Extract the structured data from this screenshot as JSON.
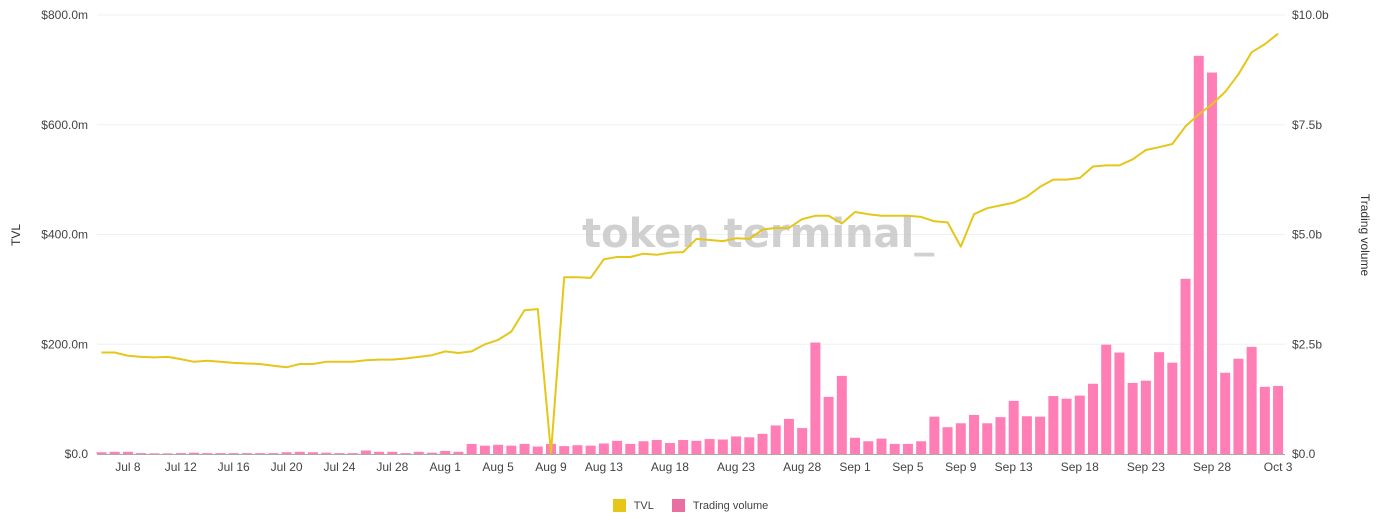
{
  "chart_data": {
    "type": "bar+line",
    "watermark": "token terminal_",
    "x": [
      "Jul 6",
      "Jul 7",
      "Jul 8",
      "Jul 9",
      "Jul 10",
      "Jul 11",
      "Jul 12",
      "Jul 13",
      "Jul 14",
      "Jul 15",
      "Jul 16",
      "Jul 17",
      "Jul 18",
      "Jul 19",
      "Jul 20",
      "Jul 21",
      "Jul 22",
      "Jul 23",
      "Jul 24",
      "Jul 25",
      "Jul 26",
      "Jul 27",
      "Jul 28",
      "Jul 29",
      "Jul 30",
      "Jul 31",
      "Aug 1",
      "Aug 2",
      "Aug 3",
      "Aug 4",
      "Aug 5",
      "Aug 6",
      "Aug 7",
      "Aug 8",
      "Aug 9",
      "Aug 10",
      "Aug 11",
      "Aug 12",
      "Aug 13",
      "Aug 14",
      "Aug 15",
      "Aug 16",
      "Aug 17",
      "Aug 18",
      "Aug 19",
      "Aug 20",
      "Aug 21",
      "Aug 22",
      "Aug 23",
      "Aug 24",
      "Aug 25",
      "Aug 26",
      "Aug 27",
      "Aug 28",
      "Aug 29",
      "Aug 30",
      "Aug 31",
      "Sep 1",
      "Sep 2",
      "Sep 3",
      "Sep 4",
      "Sep 5",
      "Sep 6",
      "Sep 7",
      "Sep 8",
      "Sep 9",
      "Sep 10",
      "Sep 11",
      "Sep 12",
      "Sep 13",
      "Sep 14",
      "Sep 15",
      "Sep 16",
      "Sep 17",
      "Sep 18",
      "Sep 19",
      "Sep 20",
      "Sep 21",
      "Sep 22",
      "Sep 23",
      "Sep 24",
      "Sep 25",
      "Sep 26",
      "Sep 27",
      "Sep 28",
      "Sep 29",
      "Sep 30",
      "Oct 1",
      "Oct 2",
      "Oct 3"
    ],
    "x_ticks": [
      "Jul 8",
      "Jul 12",
      "Jul 16",
      "Jul 20",
      "Jul 24",
      "Jul 28",
      "Aug 1",
      "Aug 5",
      "Aug 9",
      "Aug 13",
      "Aug 18",
      "Aug 23",
      "Aug 28",
      "Sep 1",
      "Sep 5",
      "Sep 9",
      "Sep 13",
      "Sep 18",
      "Sep 23",
      "Sep 28",
      "Oct 3"
    ],
    "left_axis": {
      "label": "TVL",
      "unit": "$m",
      "range": [
        0,
        800
      ],
      "ticks": [
        0,
        200,
        400,
        600,
        800
      ],
      "tick_labels": [
        "$0.0",
        "$200.0m",
        "$400.0m",
        "$600.0m",
        "$800.0m"
      ]
    },
    "right_axis": {
      "label": "Trading volume",
      "unit": "$b",
      "range": [
        0,
        10
      ],
      "ticks": [
        0,
        2.5,
        5,
        7.5,
        10
      ],
      "tick_labels": [
        "$0.0",
        "$2.5b",
        "$5.0b",
        "$7.5b",
        "$10.0b"
      ]
    },
    "grid": true,
    "legend_position": "bottom-center",
    "series": [
      {
        "name": "TVL",
        "type": "line",
        "axis": "left",
        "color": "#e5c619",
        "legend_color": "#e5c619",
        "values": [
          185,
          185,
          179,
          177,
          176,
          177,
          173,
          168,
          170,
          168,
          166,
          165,
          164,
          161,
          158,
          164,
          164,
          168,
          168,
          168,
          171,
          172,
          172,
          174,
          177,
          180,
          187,
          184,
          187,
          200,
          208,
          223,
          262,
          264,
          2,
          322,
          322,
          321,
          355,
          359,
          359,
          365,
          363,
          367,
          368,
          392,
          390,
          388,
          393,
          392,
          409,
          412,
          412,
          428,
          434,
          434,
          420,
          441,
          437,
          434,
          434,
          434,
          432,
          424,
          422,
          378,
          437,
          448,
          453,
          458,
          469,
          487,
          500,
          500,
          503,
          524,
          526,
          526,
          537,
          554,
          559,
          565,
          597,
          619,
          637,
          660,
          692,
          732,
          747,
          766
        ]
      },
      {
        "name": "Trading volume",
        "type": "bar",
        "axis": "right",
        "color": "#ff7eb6",
        "legend_color": "#e86fa0",
        "values": [
          0.04,
          0.05,
          0.05,
          0.02,
          0.015,
          0.015,
          0.02,
          0.03,
          0.02,
          0.02,
          0.02,
          0.02,
          0.02,
          0.02,
          0.04,
          0.05,
          0.04,
          0.03,
          0.02,
          0.02,
          0.08,
          0.05,
          0.05,
          0.02,
          0.05,
          0.03,
          0.07,
          0.05,
          0.23,
          0.19,
          0.21,
          0.19,
          0.23,
          0.17,
          0.23,
          0.18,
          0.2,
          0.19,
          0.24,
          0.3,
          0.23,
          0.29,
          0.32,
          0.25,
          0.32,
          0.3,
          0.34,
          0.33,
          0.4,
          0.38,
          0.46,
          0.65,
          0.8,
          0.59,
          2.54,
          1.3,
          1.78,
          0.37,
          0.29,
          0.35,
          0.23,
          0.23,
          0.29,
          0.85,
          0.61,
          0.7,
          0.89,
          0.7,
          0.84,
          1.21,
          0.86,
          0.85,
          1.32,
          1.26,
          1.33,
          1.6,
          2.49,
          2.31,
          1.62,
          1.67,
          2.32,
          2.08,
          3.99,
          9.07,
          8.69,
          1.85,
          2.17,
          2.44,
          1.53,
          1.55
        ]
      }
    ]
  }
}
